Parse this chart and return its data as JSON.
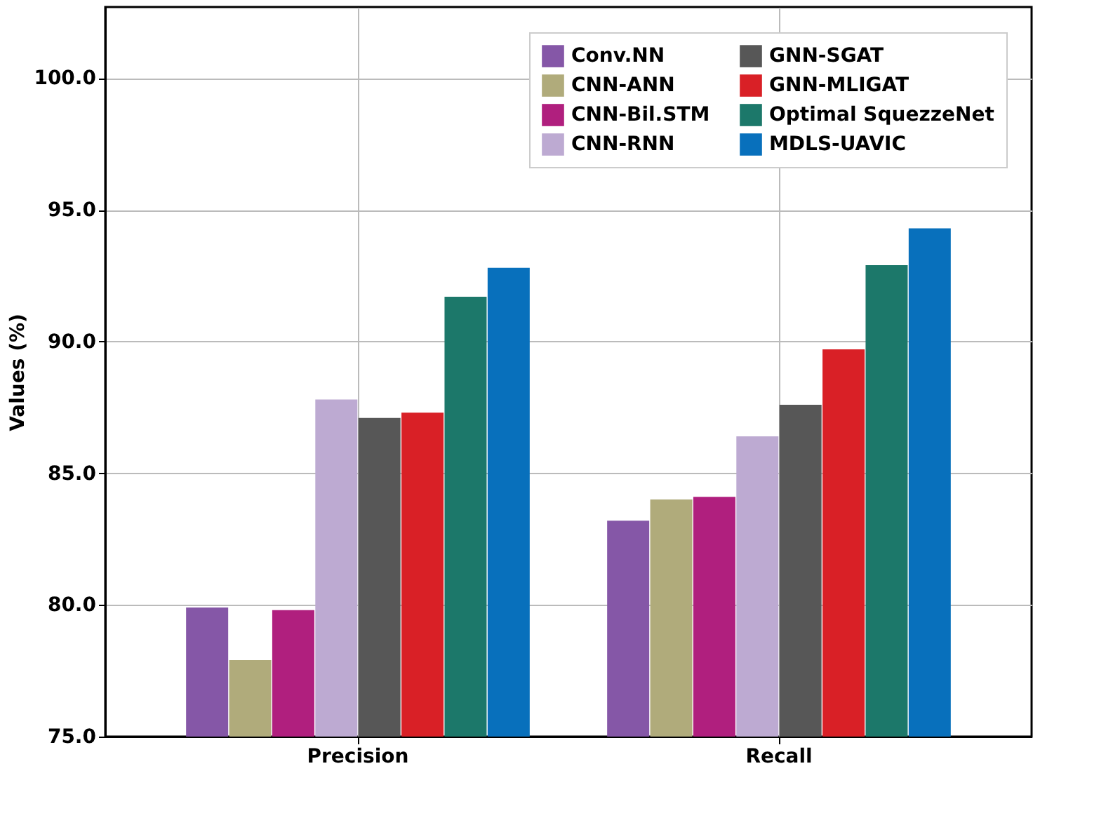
{
  "chart_data": {
    "type": "bar",
    "ylabel": "Values (%)",
    "categories": [
      "Precision",
      "Recall"
    ],
    "series": [
      {
        "name": "Conv.NN",
        "color": "#8557a7",
        "values": [
          79.9,
          83.2
        ]
      },
      {
        "name": "CNN-ANN",
        "color": "#b0ab7b",
        "values": [
          77.9,
          84.0
        ]
      },
      {
        "name": "CNN-Bil.STM",
        "color": "#b01f7e",
        "values": [
          79.8,
          84.1
        ]
      },
      {
        "name": "CNN-RNN",
        "color": "#bdaad2",
        "values": [
          87.8,
          86.4
        ]
      },
      {
        "name": "GNN-SGAT",
        "color": "#575757",
        "values": [
          87.1,
          87.6
        ]
      },
      {
        "name": "GNN-MLIGAT",
        "color": "#d92026",
        "values": [
          87.3,
          89.7
        ]
      },
      {
        "name": "Optimal SquezzeNet",
        "color": "#1c786a",
        "values": [
          91.7,
          92.9
        ]
      },
      {
        "name": "MDLS-UAVIC",
        "color": "#0870bc",
        "values": [
          92.8,
          94.3
        ]
      }
    ],
    "ylim": [
      75,
      102.7
    ],
    "yticks": [
      {
        "value": 75,
        "label": "75.0"
      },
      {
        "value": 80,
        "label": "80.0"
      },
      {
        "value": 85,
        "label": "85.0"
      },
      {
        "value": 90,
        "label": "90.0"
      },
      {
        "value": 95,
        "label": "95.0"
      },
      {
        "value": 100,
        "label": "100.0"
      }
    ],
    "grid": true,
    "legend": "top right"
  }
}
